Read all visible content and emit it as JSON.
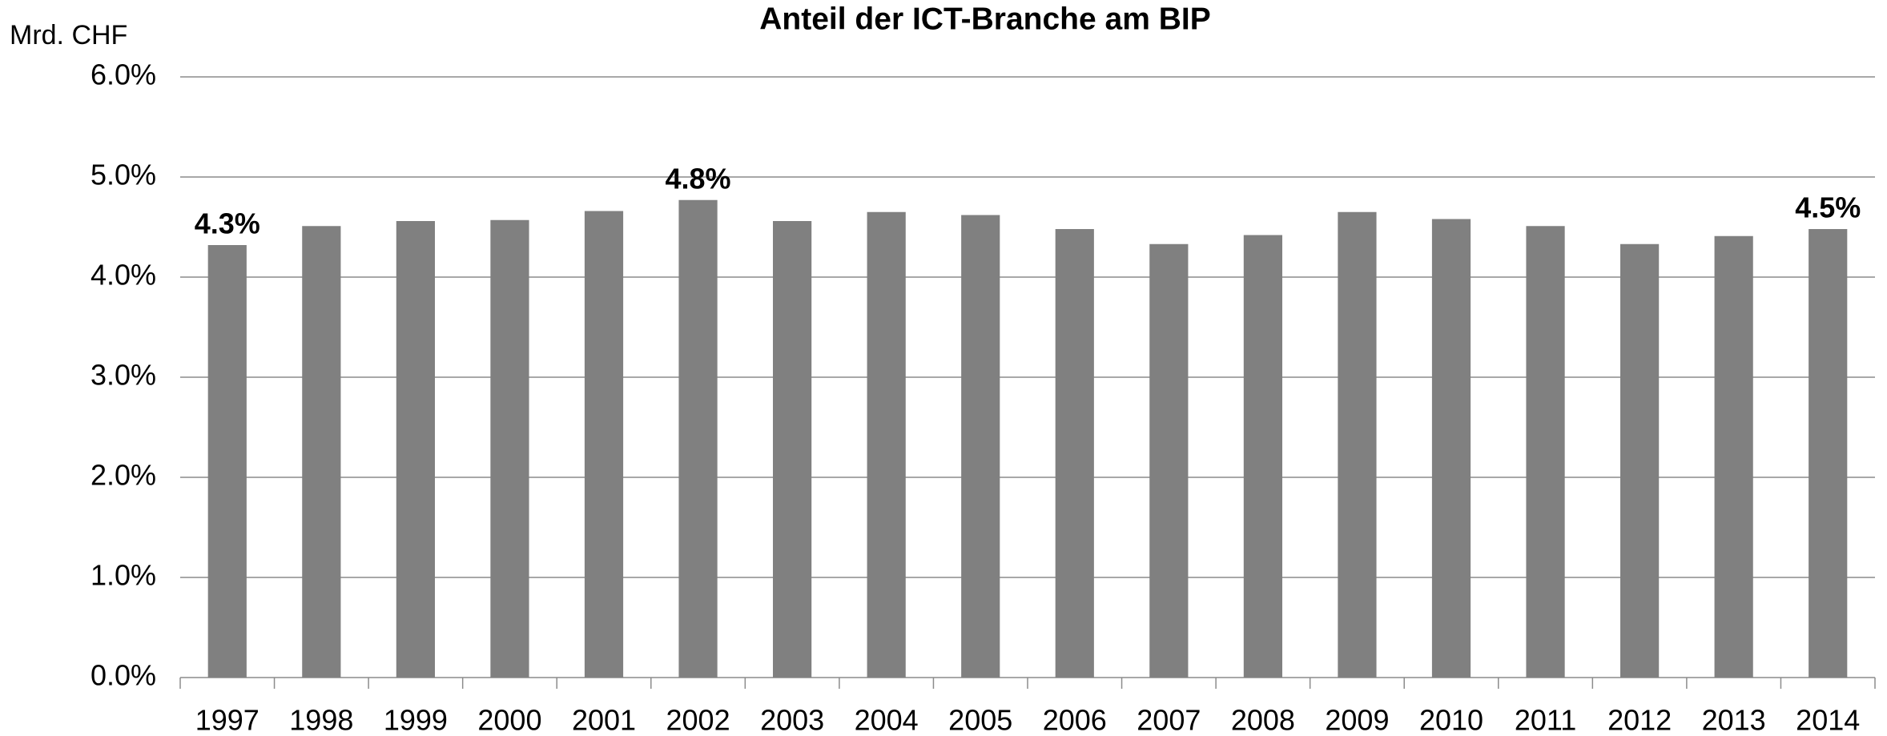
{
  "chart_data": {
    "type": "bar",
    "title": "Anteil der ICT-Branche am BIP",
    "y_label": "Mrd. CHF",
    "categories": [
      "1997",
      "1998",
      "1999",
      "2000",
      "2001",
      "2002",
      "2003",
      "2004",
      "2005",
      "2006",
      "2007",
      "2008",
      "2009",
      "2010",
      "2011",
      "2012",
      "2013",
      "2014"
    ],
    "values": [
      4.32,
      4.51,
      4.56,
      4.57,
      4.66,
      4.77,
      4.56,
      4.65,
      4.62,
      4.48,
      4.33,
      4.42,
      4.65,
      4.58,
      4.51,
      4.33,
      4.41,
      4.48
    ],
    "value_labels": [
      "4.3%",
      null,
      null,
      null,
      null,
      "4.8%",
      null,
      null,
      null,
      null,
      null,
      null,
      null,
      null,
      null,
      null,
      null,
      "4.5%"
    ],
    "color": "#808080",
    "ylim": [
      0,
      6
    ],
    "yticks": [
      {
        "value": 0,
        "label": "0.0%"
      },
      {
        "value": 1,
        "label": "1.0%"
      },
      {
        "value": 2,
        "label": "2.0%"
      },
      {
        "value": 3,
        "label": "3.0%"
      },
      {
        "value": 4,
        "label": "4.0%"
      },
      {
        "value": 5,
        "label": "5.0%"
      },
      {
        "value": 6,
        "label": "6.0%"
      }
    ],
    "grid": true
  }
}
